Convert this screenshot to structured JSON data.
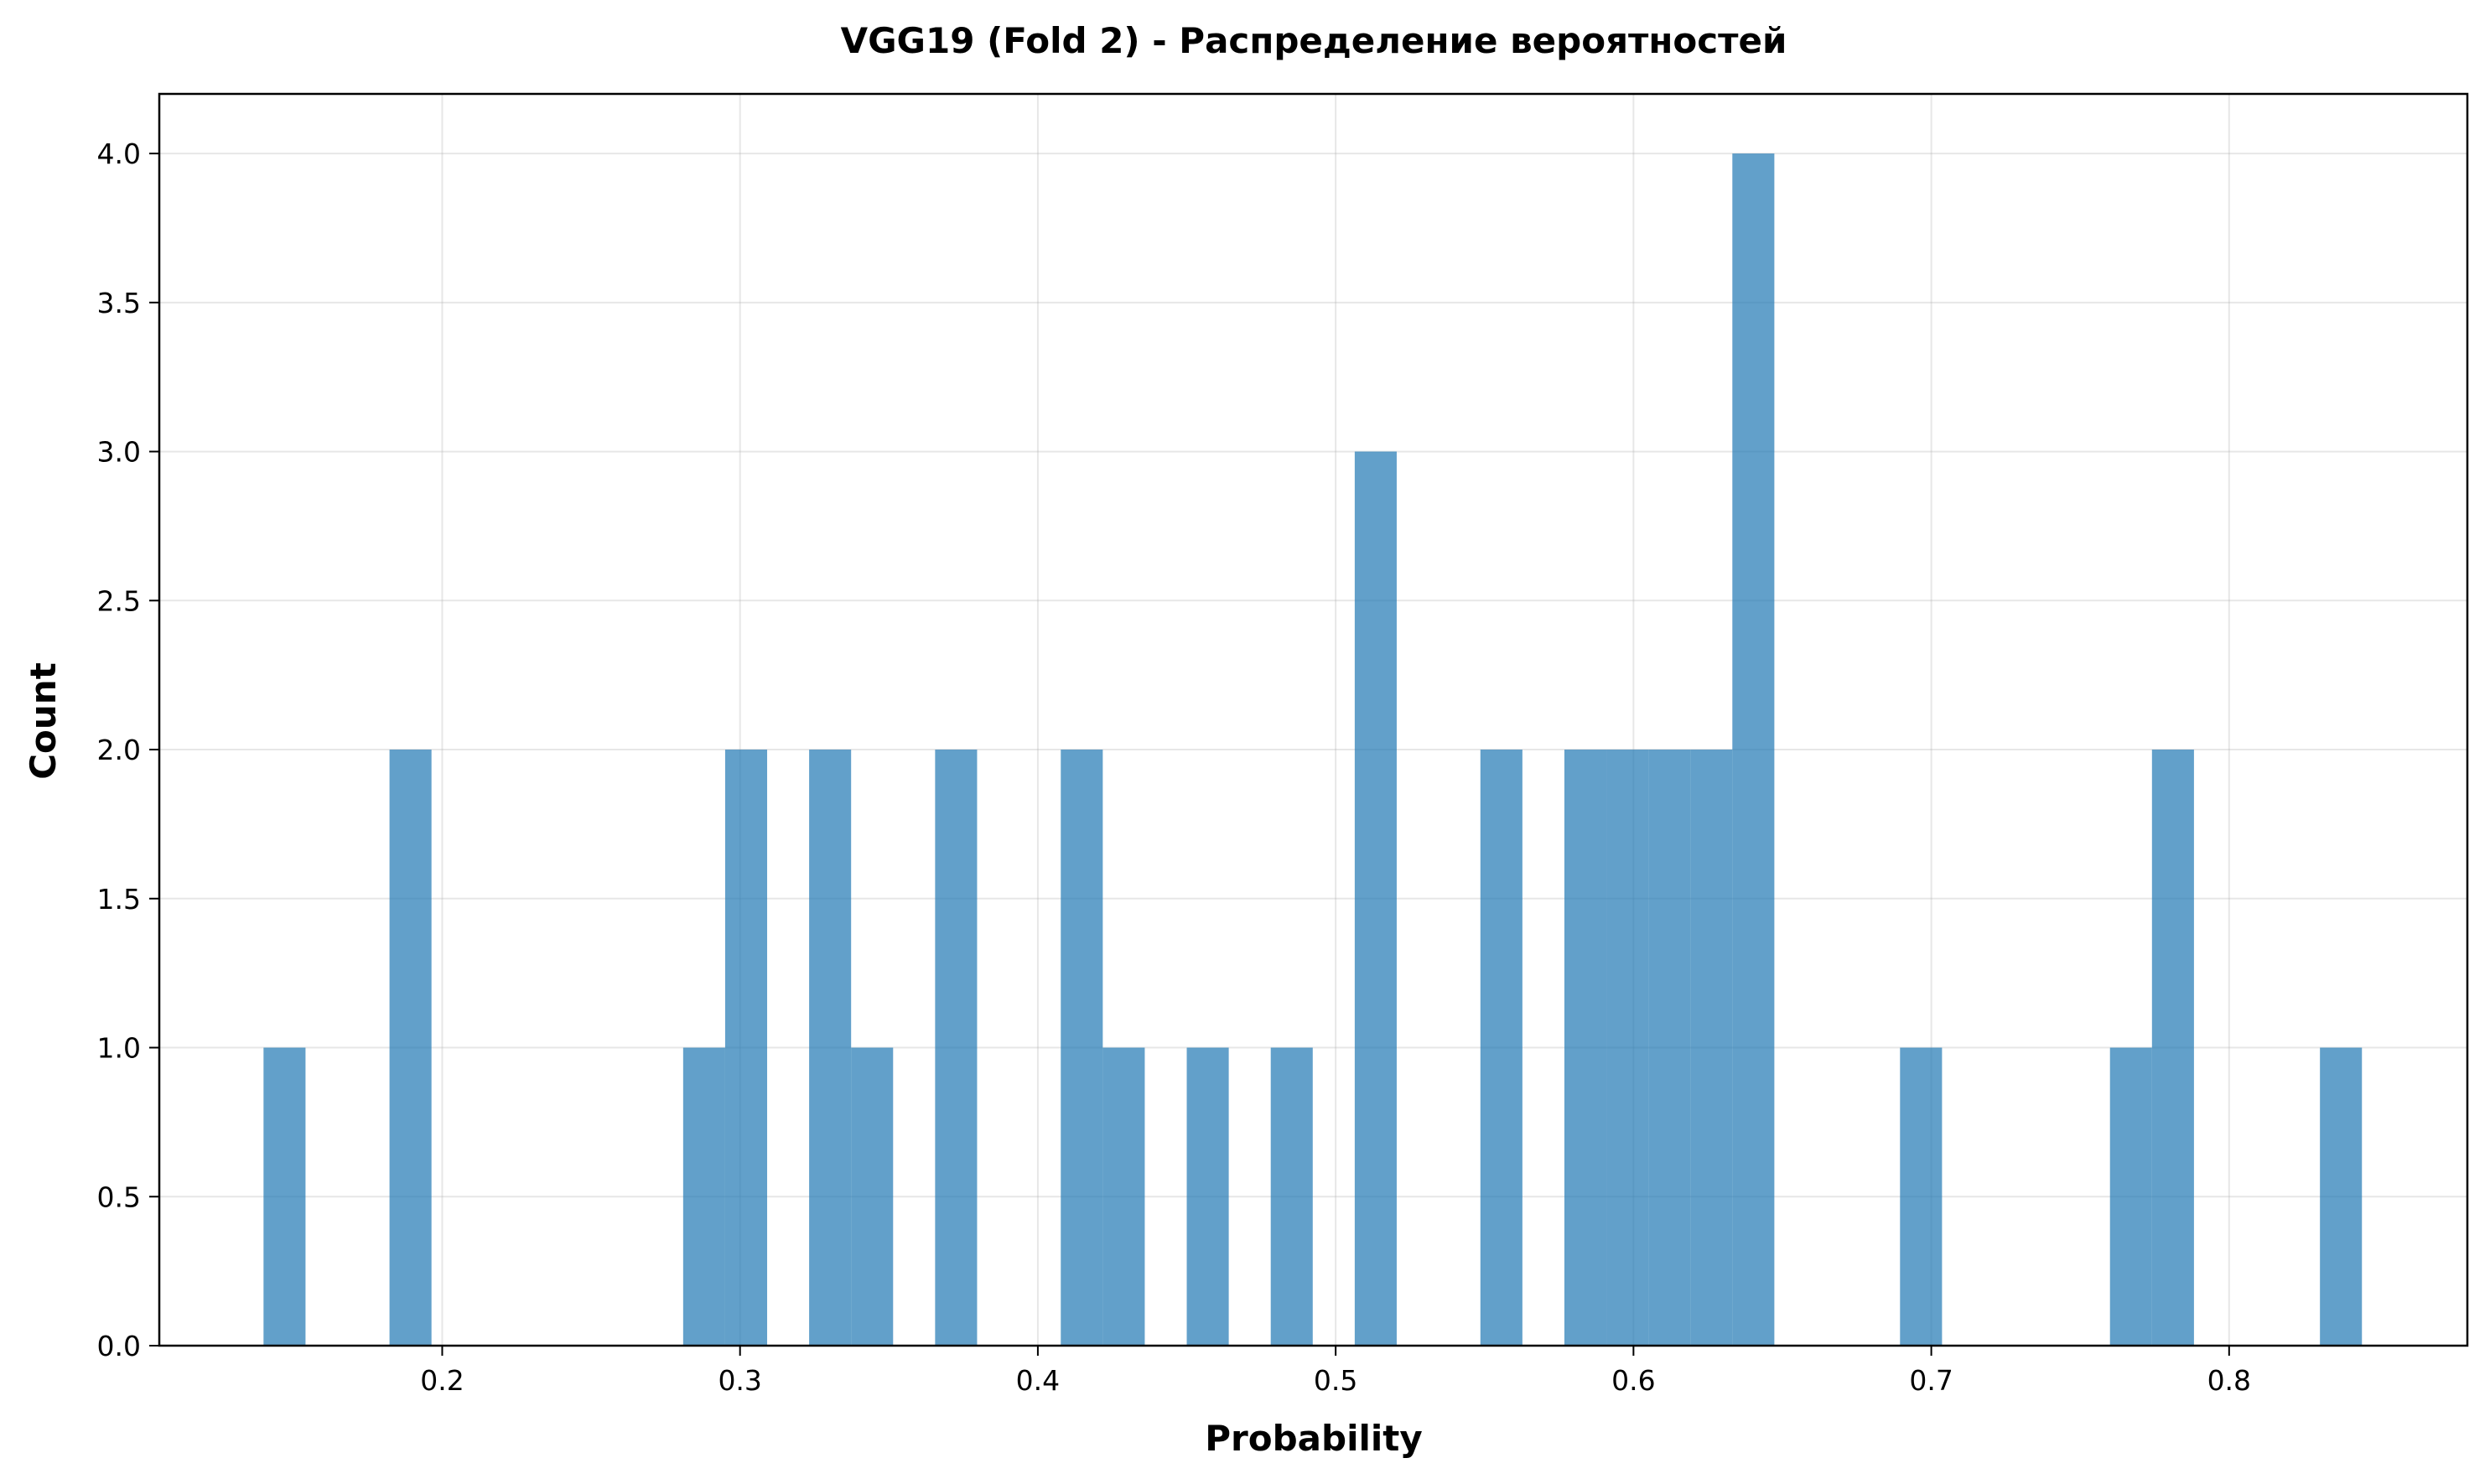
{
  "chart_data": {
    "type": "bar",
    "title": "VGG19 (Fold 2) - Распределение вероятностей",
    "xlabel": "Probability",
    "ylabel": "Count",
    "bar_color": "#1f77b4",
    "bar_opacity": 0.7,
    "grid": true,
    "xlim": [
      0.105,
      0.88
    ],
    "ylim": [
      0,
      4.2
    ],
    "bin_width": 0.0141,
    "xticks": [
      0.2,
      0.3,
      0.4,
      0.5,
      0.6,
      0.7,
      0.8
    ],
    "xtick_labels": [
      "0.2",
      "0.3",
      "0.4",
      "0.5",
      "0.6",
      "0.7",
      "0.8"
    ],
    "yticks": [
      0.0,
      0.5,
      1.0,
      1.5,
      2.0,
      2.5,
      3.0,
      3.5,
      4.0
    ],
    "ytick_labels": [
      "0.0",
      "0.5",
      "1.0",
      "1.5",
      "2.0",
      "2.5",
      "3.0",
      "3.5",
      "4.0"
    ],
    "bins": [
      {
        "start": 0.14,
        "count": 1
      },
      {
        "start": 0.1823,
        "count": 2
      },
      {
        "start": 0.2809,
        "count": 1
      },
      {
        "start": 0.295,
        "count": 2
      },
      {
        "start": 0.3232,
        "count": 2
      },
      {
        "start": 0.3373,
        "count": 1
      },
      {
        "start": 0.3655,
        "count": 2
      },
      {
        "start": 0.4077,
        "count": 2
      },
      {
        "start": 0.4218,
        "count": 1
      },
      {
        "start": 0.45,
        "count": 1
      },
      {
        "start": 0.4782,
        "count": 1
      },
      {
        "start": 0.5064,
        "count": 3
      },
      {
        "start": 0.5486,
        "count": 2
      },
      {
        "start": 0.5768,
        "count": 2
      },
      {
        "start": 0.5909,
        "count": 2
      },
      {
        "start": 0.605,
        "count": 2
      },
      {
        "start": 0.6191,
        "count": 2
      },
      {
        "start": 0.6332,
        "count": 4
      },
      {
        "start": 0.6895,
        "count": 1
      },
      {
        "start": 0.76,
        "count": 1
      },
      {
        "start": 0.7741,
        "count": 2
      },
      {
        "start": 0.8305,
        "count": 1
      }
    ]
  }
}
